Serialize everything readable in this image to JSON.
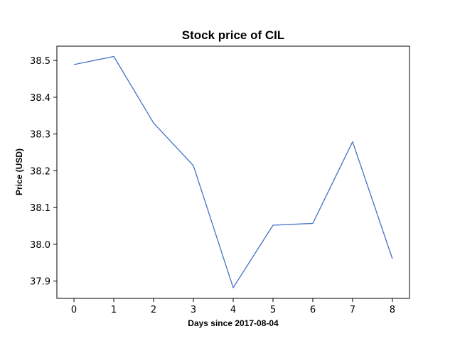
{
  "chart_data": {
    "type": "line",
    "title": "Stock price of CIL",
    "xlabel": "Days since 2017-08-04",
    "ylabel": "Price (USD)",
    "x": [
      0,
      1,
      2,
      3,
      4,
      5,
      6,
      7,
      8
    ],
    "series": [
      {
        "values": [
          38.489,
          38.511,
          38.33,
          38.214,
          37.882,
          38.052,
          38.057,
          38.279,
          37.961
        ],
        "color": "#4472c4"
      }
    ],
    "xlim": [
      -0.43,
      8.43
    ],
    "ylim": [
      37.853,
      38.539
    ],
    "xticks": [
      0,
      1,
      2,
      3,
      4,
      5,
      6,
      7,
      8
    ],
    "yticks": [
      37.9,
      38.0,
      38.1,
      38.2,
      38.3,
      38.4,
      38.5
    ],
    "xtick_labels": [
      "0",
      "1",
      "2",
      "3",
      "4",
      "5",
      "6",
      "7",
      "8"
    ],
    "ytick_labels": [
      "37.9",
      "38.0",
      "38.1",
      "38.2",
      "38.3",
      "38.4",
      "38.5"
    ],
    "grid": false,
    "legend": "none"
  }
}
